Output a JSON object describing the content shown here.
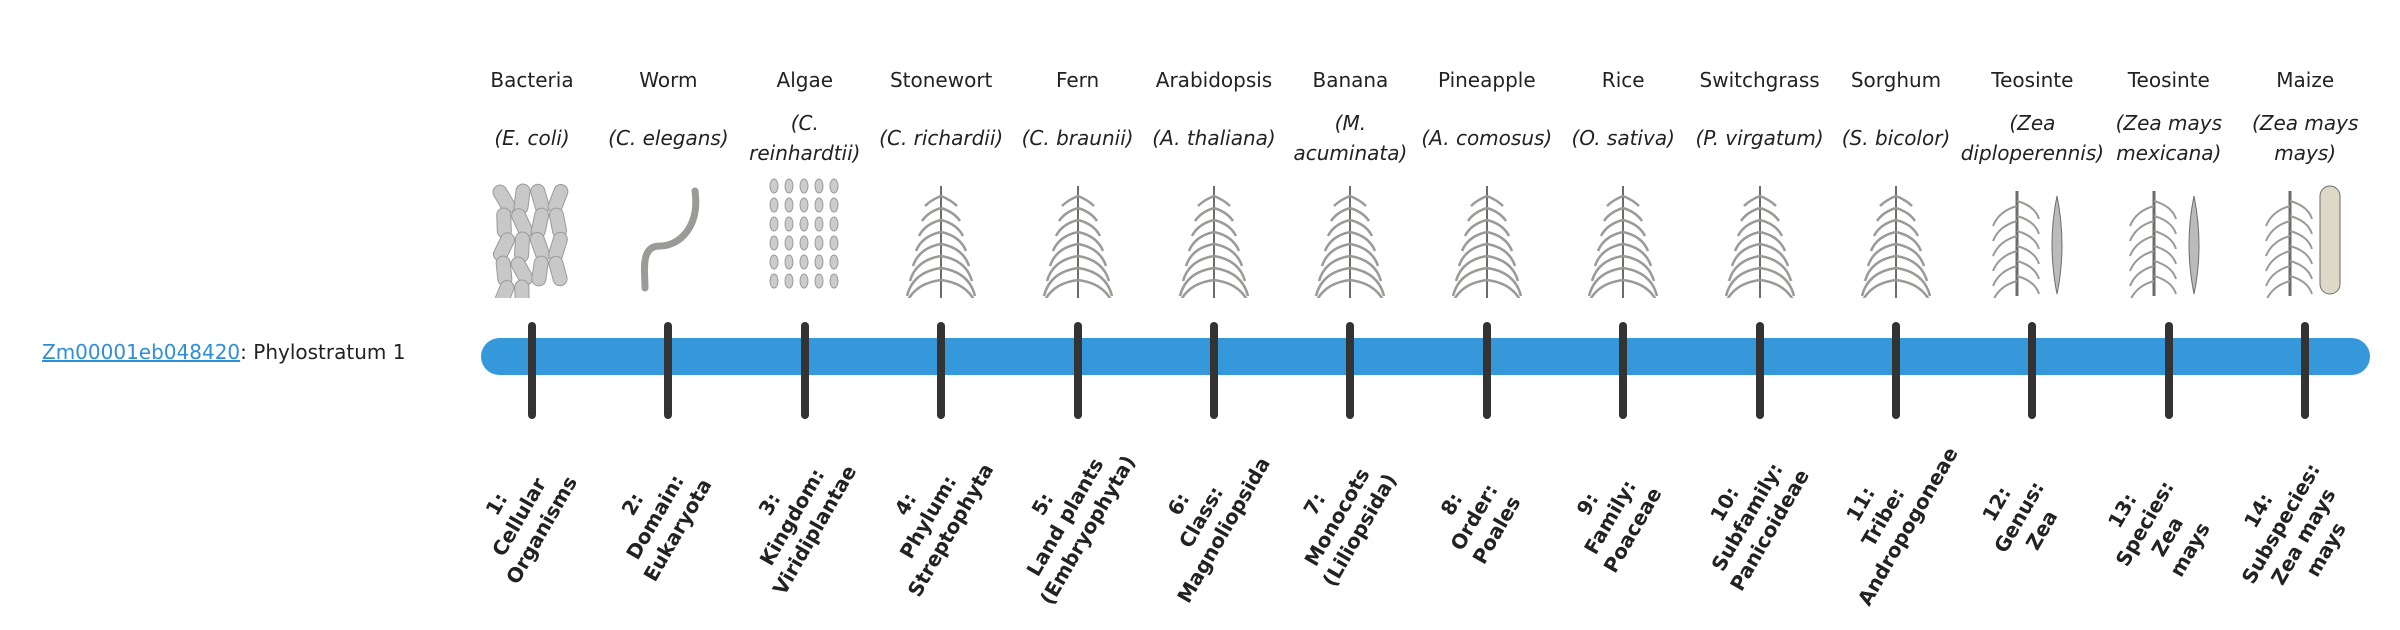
{
  "gene": {
    "id": "Zm00001eb048420",
    "suffix": ": Phylostratum 1"
  },
  "colors": {
    "bar": "#3598db",
    "tick": "#333333",
    "link": "#2e8fd6"
  },
  "stages": [
    {
      "common": "Bacteria",
      "species": "(E. coli)",
      "icon": "bacteria-icon",
      "label": [
        "1:",
        "Cellular",
        "Organisms"
      ]
    },
    {
      "common": "Worm",
      "species": "(C. elegans)",
      "icon": "worm-icon",
      "label": [
        "2:",
        "Domain:",
        "Eukaryota"
      ]
    },
    {
      "common": "Algae",
      "species": "(C. reinhardtii)",
      "icon": "algae-icon",
      "label": [
        "3:",
        "Kingdom:",
        "Viridiplantae"
      ]
    },
    {
      "common": "Stonewort",
      "species": "(C. richardii)",
      "icon": "stonewort-icon",
      "label": [
        "4:",
        "Phylum:",
        "Streptophyta"
      ]
    },
    {
      "common": "Fern",
      "species": "(C. braunii)",
      "icon": "fern-icon",
      "label": [
        "5:",
        "Land plants",
        "(Embryophyta)"
      ]
    },
    {
      "common": "Arabidopsis",
      "species": "(A. thaliana)",
      "icon": "arabidopsis-icon",
      "label": [
        "6:",
        "Class:",
        "Magnoliopsida"
      ]
    },
    {
      "common": "Banana",
      "species": "(M. acuminata)",
      "icon": "banana-icon",
      "label": [
        "7:",
        "Monocots",
        "(Liliopsida)"
      ]
    },
    {
      "common": "Pineapple",
      "species": "(A. comosus)",
      "icon": "pineapple-icon",
      "label": [
        "8:",
        "Order:",
        "Poales"
      ]
    },
    {
      "common": "Rice",
      "species": "(O. sativa)",
      "icon": "rice-icon",
      "label": [
        "9:",
        "Family:",
        "Poaceae"
      ]
    },
    {
      "common": "Switchgrass",
      "species": "(P. virgatum)",
      "icon": "switchgrass-icon",
      "label": [
        "10:",
        "Subfamily:",
        "Panicoideae"
      ]
    },
    {
      "common": "Sorghum",
      "species": "(S. bicolor)",
      "icon": "sorghum-icon",
      "label": [
        "11:",
        "Tribe:",
        "Andropogoneae"
      ]
    },
    {
      "common": "Teosinte",
      "species": "(Zea diploperennis)",
      "icon": "teosinte-icon",
      "label": [
        "12:",
        "Genus:",
        "Zea"
      ]
    },
    {
      "common": "Teosinte",
      "species": "(Zea mays mexicana)",
      "icon": "teosinte-icon",
      "label": [
        "13:",
        "Species:",
        "Zea",
        "mays"
      ]
    },
    {
      "common": "Maize",
      "species": "(Zea mays mays)",
      "icon": "maize-icon",
      "label": [
        "14:",
        "Subspecies:",
        "Zea mays",
        "mays"
      ]
    }
  ]
}
